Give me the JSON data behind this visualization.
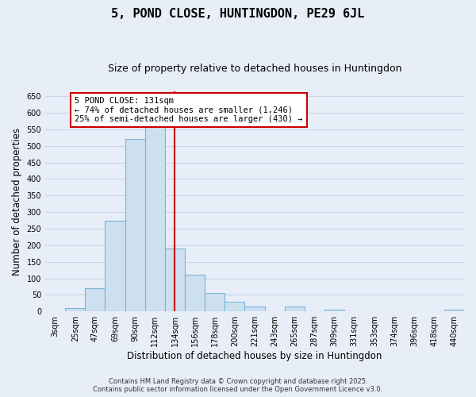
{
  "title": "5, POND CLOSE, HUNTINGDON, PE29 6JL",
  "subtitle": "Size of property relative to detached houses in Huntingdon",
  "xlabel": "Distribution of detached houses by size in Huntingdon",
  "ylabel": "Number of detached properties",
  "bar_color": "#cce0f0",
  "bar_edge_color": "#7ab4d8",
  "categories": [
    "3sqm",
    "25sqm",
    "47sqm",
    "69sqm",
    "90sqm",
    "112sqm",
    "134sqm",
    "156sqm",
    "178sqm",
    "200sqm",
    "221sqm",
    "243sqm",
    "265sqm",
    "287sqm",
    "309sqm",
    "331sqm",
    "353sqm",
    "374sqm",
    "396sqm",
    "418sqm",
    "440sqm"
  ],
  "values": [
    0,
    10,
    70,
    275,
    520,
    575,
    190,
    110,
    55,
    30,
    15,
    0,
    15,
    0,
    5,
    0,
    0,
    0,
    0,
    0,
    5
  ],
  "ylim": [
    0,
    665
  ],
  "yticks": [
    0,
    50,
    100,
    150,
    200,
    250,
    300,
    350,
    400,
    450,
    500,
    550,
    600,
    650
  ],
  "vline_color": "#cc0000",
  "vline_pos": 6.0,
  "annotation_text": "5 POND CLOSE: 131sqm\n← 74% of detached houses are smaller (1,246)\n25% of semi-detached houses are larger (430) →",
  "annotation_box_color": "white",
  "annotation_edge_color": "#cc0000",
  "footer_line1": "Contains HM Land Registry data © Crown copyright and database right 2025.",
  "footer_line2": "Contains public sector information licensed under the Open Government Licence v3.0.",
  "bg_color": "#e8eef8",
  "grid_color": "#c8d4e8",
  "title_fontsize": 11,
  "subtitle_fontsize": 9,
  "tick_fontsize": 7,
  "axis_label_fontsize": 8.5
}
